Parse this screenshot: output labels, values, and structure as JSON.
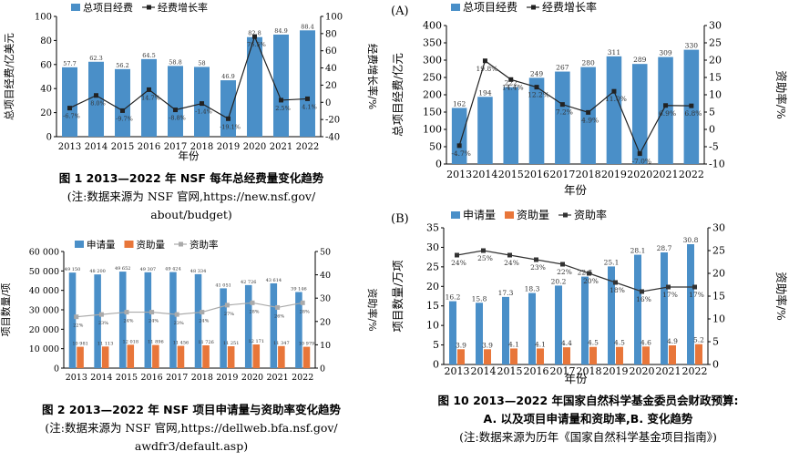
{
  "captions": {
    "fig1_title": "图 1 2013—2022 年 NSF 每年总经费量变化趋势",
    "fig1_note_1": "(注:数据来源为 NSF 官网,https://new.nsf.gov/",
    "fig1_note_2": "about/budget)",
    "fig2_title": "图 2 2013—2022 年 NSF 项目申请量与资助率变化趋势",
    "fig2_note_1": "(注:数据来源为 NSF 官网,https://dellweb.bfa.nsf.gov/",
    "fig2_note_2": "awdfr3/default.asp)",
    "fig10_title_1": "图 10 2013—2022 年国家自然科学基金委员会财政预算:",
    "fig10_title_2": "A. 以及项目申请量和资助率,B. 变化趋势",
    "fig10_note": "(注:数据来源为历年《国家自然科学基金项目指南》)"
  },
  "chart_data": [
    {
      "id": "fig1",
      "type": "bar",
      "categories": [
        "2013",
        "2014",
        "2015",
        "2016",
        "2017",
        "2018",
        "2019",
        "2020",
        "2021",
        "2022"
      ],
      "series": [
        {
          "name": "总项目经费",
          "kind": "bar",
          "axis": "left",
          "values": [
            57.7,
            62.3,
            56.2,
            64.5,
            58.8,
            58,
            46.9,
            82.8,
            84.9,
            88.4
          ],
          "labels": [
            "57.7",
            "62.3",
            "56.2",
            "64.5",
            "58.8",
            "58",
            "46.9",
            "82.8",
            "84.9",
            "88.4"
          ]
        },
        {
          "name": "经费增长率",
          "kind": "line",
          "axis": "right",
          "values": [
            -6.7,
            8.0,
            -9.7,
            14.7,
            -8.8,
            -1.4,
            -19.1,
            76.5,
            2.5,
            4.1
          ],
          "labels": [
            "-6.7%",
            "8.0%",
            "-9.7%",
            "14.7%",
            "-8.8%",
            "-1.4%",
            "-19.1%",
            "76.5%",
            "2.5%",
            "4.1%"
          ]
        }
      ],
      "ylabel": "总项目经费/亿美元",
      "y2label": "经费增长率/%",
      "xlabel": "年份",
      "ylim": [
        0,
        100
      ],
      "yticks": [
        "0",
        "20",
        "40",
        "60",
        "80",
        "100"
      ],
      "y2lim": [
        -40,
        100
      ],
      "y2ticks": [
        "-40",
        "-20",
        "0",
        "20",
        "40",
        "60",
        "80",
        "100"
      ],
      "colors": {
        "bar": "#4a8fc8",
        "line": "#222222"
      }
    },
    {
      "id": "fig2",
      "type": "bar",
      "categories": [
        "2013",
        "2014",
        "2015",
        "2016",
        "2017",
        "2018",
        "2019",
        "2020",
        "2021",
        "2022"
      ],
      "series": [
        {
          "name": "申请量",
          "kind": "bar",
          "axis": "left",
          "values": [
            49150,
            48200,
            49652,
            49307,
            49424,
            48334,
            41051,
            42726,
            43614,
            39146
          ],
          "labels": [
            "49 150",
            "48 200",
            "49 652",
            "49 307",
            "49 424",
            "48 334",
            "41 051",
            "42 726",
            "43 614",
            "39 146"
          ]
        },
        {
          "name": "资助量",
          "kind": "bar",
          "axis": "left",
          "values": [
            10981,
            11113,
            12018,
            11896,
            11456,
            11726,
            11251,
            12171,
            11347,
            10979
          ],
          "labels": [
            "10 981",
            "11 113",
            "12 018",
            "11 896",
            "11 456",
            "11 726",
            "11 251",
            "12 171",
            "11 347",
            "10 979"
          ]
        },
        {
          "name": "资助率",
          "kind": "line",
          "axis": "right",
          "values": [
            22,
            23,
            24,
            24,
            23,
            24,
            27,
            28,
            26,
            28
          ],
          "labels": [
            "22%",
            "23%",
            "24%",
            "24%",
            "23%",
            "24%",
            "27%",
            "28%",
            "26%",
            "28%"
          ]
        }
      ],
      "ylabel": "项目数量/项",
      "y2label": "资助率/%",
      "ylim": [
        0,
        60000
      ],
      "yticks": [
        "0",
        "10 000",
        "20 000",
        "30 000",
        "40 000",
        "50 000",
        "60 000"
      ],
      "y2lim": [
        0,
        50
      ],
      "y2ticks": [
        "0",
        "10",
        "20",
        "30",
        "40",
        "50"
      ],
      "colors": {
        "bar1": "#4a8fc8",
        "bar2": "#e8763a",
        "line": "#aaaaaa"
      }
    },
    {
      "id": "fig10A",
      "type": "bar",
      "panel_label": "(A)",
      "categories": [
        "2013",
        "2014",
        "2015",
        "2016",
        "2017",
        "2018",
        "2019",
        "2020",
        "2021",
        "2022"
      ],
      "series": [
        {
          "name": "总项目经费",
          "kind": "bar",
          "axis": "left",
          "values": [
            162,
            194,
            222,
            249,
            267,
            280,
            311,
            289,
            309,
            330
          ],
          "labels": [
            "162",
            "194",
            "222",
            "249",
            "267",
            "280",
            "311",
            "289",
            "309",
            "330"
          ]
        },
        {
          "name": "经费增长率",
          "kind": "line",
          "axis": "right",
          "values": [
            -4.7,
            19.8,
            14.4,
            12.2,
            7.2,
            4.9,
            11.0,
            -7.0,
            6.9,
            6.8
          ],
          "labels": [
            "-4.7%",
            "19.8%",
            "14.4%",
            "12.2%",
            "7.2%",
            "4.9%",
            "11.0%",
            "-7.0%",
            "6.9%",
            "6.8%"
          ]
        }
      ],
      "ylabel": "总项目经费/亿元",
      "y2label": "资助率/%",
      "xlabel": "年份",
      "ylim": [
        0,
        400
      ],
      "yticks": [
        "0",
        "50",
        "100",
        "150",
        "200",
        "250",
        "300",
        "350",
        "400"
      ],
      "y2lim": [
        -10,
        30
      ],
      "y2ticks": [
        "-10",
        "-5",
        "0",
        "5",
        "10",
        "15",
        "20",
        "25",
        "30"
      ],
      "colors": {
        "bar": "#4a8fc8",
        "line": "#222222"
      }
    },
    {
      "id": "fig10B",
      "type": "bar",
      "panel_label": "(B)",
      "categories": [
        "2013",
        "2014",
        "2015",
        "2016",
        "2017",
        "2018",
        "2019",
        "2020",
        "2021",
        "2022"
      ],
      "series": [
        {
          "name": "申请量",
          "kind": "bar",
          "axis": "left",
          "values": [
            16.2,
            15.8,
            17.3,
            18.3,
            20.2,
            22.5,
            25.1,
            28.1,
            28.7,
            30.8
          ],
          "labels": [
            "16.2",
            "15.8",
            "17.3",
            "18.3",
            "20.2",
            "22.5",
            "25.1",
            "28.1",
            "28.7",
            "30.8"
          ]
        },
        {
          "name": "资助量",
          "kind": "bar",
          "axis": "left",
          "values": [
            3.9,
            3.9,
            4.1,
            4.1,
            4.4,
            4.5,
            4.5,
            4.6,
            4.9,
            5.2
          ],
          "labels": [
            "3.9",
            "3.9",
            "4.1",
            "4.1",
            "4.4",
            "4.5",
            "4.5",
            "4.6",
            "4.9",
            "5.2"
          ]
        },
        {
          "name": "资助率",
          "kind": "line",
          "axis": "right",
          "values": [
            24,
            25,
            24,
            23,
            22,
            20,
            18,
            16,
            17,
            17
          ],
          "labels": [
            "24%",
            "25%",
            "24%",
            "23%",
            "22%",
            "20%",
            "18%",
            "16%",
            "17%",
            "17%"
          ]
        }
      ],
      "ylabel": "项目数量/万项",
      "y2label": "资助率/%",
      "xlabel": "年份",
      "ylim": [
        0,
        35
      ],
      "yticks": [
        "0",
        "5",
        "10",
        "15",
        "20",
        "25",
        "30",
        "35"
      ],
      "y2lim": [
        0,
        30
      ],
      "y2ticks": [
        "0",
        "5",
        "10",
        "15",
        "20",
        "25",
        "30"
      ],
      "colors": {
        "bar1": "#4a8fc8",
        "bar2": "#e8763a",
        "line": "#333333"
      }
    }
  ]
}
